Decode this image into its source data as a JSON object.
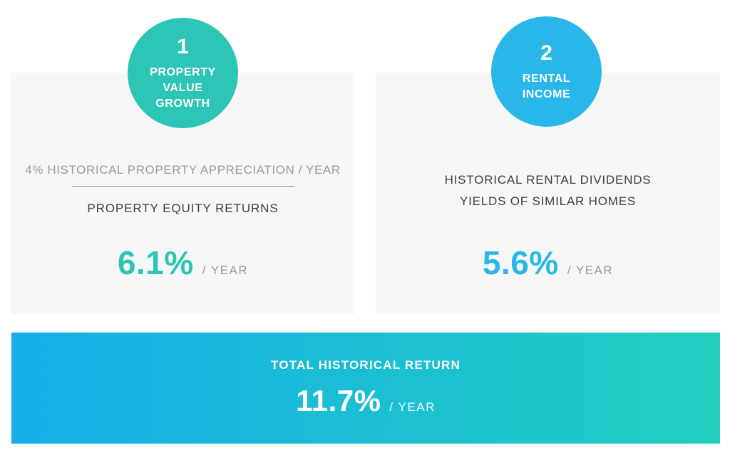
{
  "infographic": {
    "cards": [
      {
        "badge": {
          "number": "1",
          "lines": [
            "PROPERTY",
            "VALUE",
            "GROWTH"
          ],
          "color": "#2cc5b6"
        },
        "note": "4% HISTORICAL PROPERTY APPRECIATION / YEAR",
        "title": "PROPERTY EQUITY RETURNS",
        "rate": "6.1%",
        "unit": "/ YEAR",
        "rate_color": "#2cc5b6"
      },
      {
        "badge": {
          "number": "2",
          "lines": [
            "RENTAL",
            "INCOME"
          ],
          "color": "#29b6e8"
        },
        "description_lines": [
          "HISTORICAL RENTAL DIVIDENDS",
          "YIELDS OF SIMILAR HOMES"
        ],
        "rate": "5.6%",
        "unit": "/ YEAR",
        "rate_color": "#29b6e8"
      }
    ],
    "banner": {
      "title": "TOTAL HISTORICAL RETURN",
      "rate": "11.7%",
      "unit": "/ YEAR",
      "gradient_start": "#14aee8",
      "gradient_end": "#21cfc0"
    },
    "colors": {
      "card_background": "#f7f7f7",
      "muted_text": "#9a9a9a",
      "dark_text": "#3d3d3d",
      "teal_accent": "#2cc5b6",
      "blue_accent": "#29b6e8"
    }
  }
}
